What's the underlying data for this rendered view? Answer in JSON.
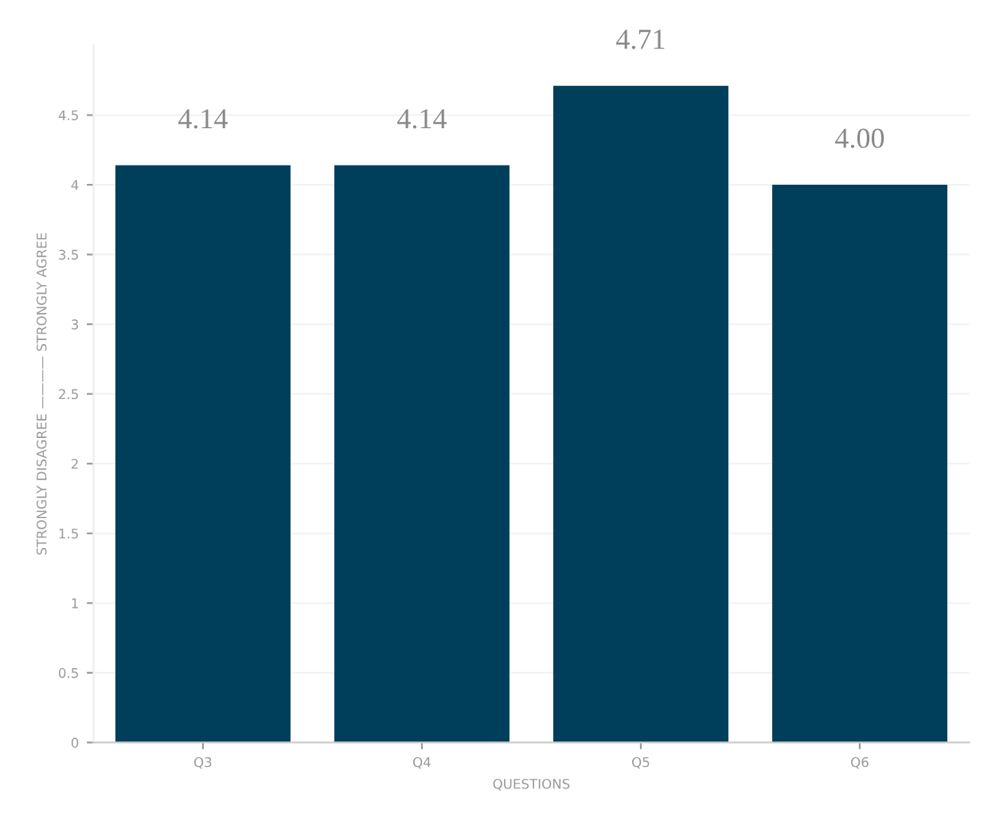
{
  "chart_data": {
    "type": "bar",
    "categories": [
      "Q3",
      "Q4",
      "Q5",
      "Q6"
    ],
    "values": [
      4.14,
      4.14,
      4.71,
      4.0
    ],
    "value_labels": [
      "4.14",
      "4.14",
      "4.71",
      "4.00"
    ],
    "color": "#003f5c",
    "xlabel": "QUESTIONS",
    "ylabel": "STRONGLY DISAGREE ———— STRONGLY AGREE",
    "ylim": [
      0,
      5
    ],
    "yticks": [
      0,
      0.5,
      1,
      1.5,
      2,
      2.5,
      3,
      3.5,
      4,
      4.5
    ],
    "grid": "y"
  }
}
